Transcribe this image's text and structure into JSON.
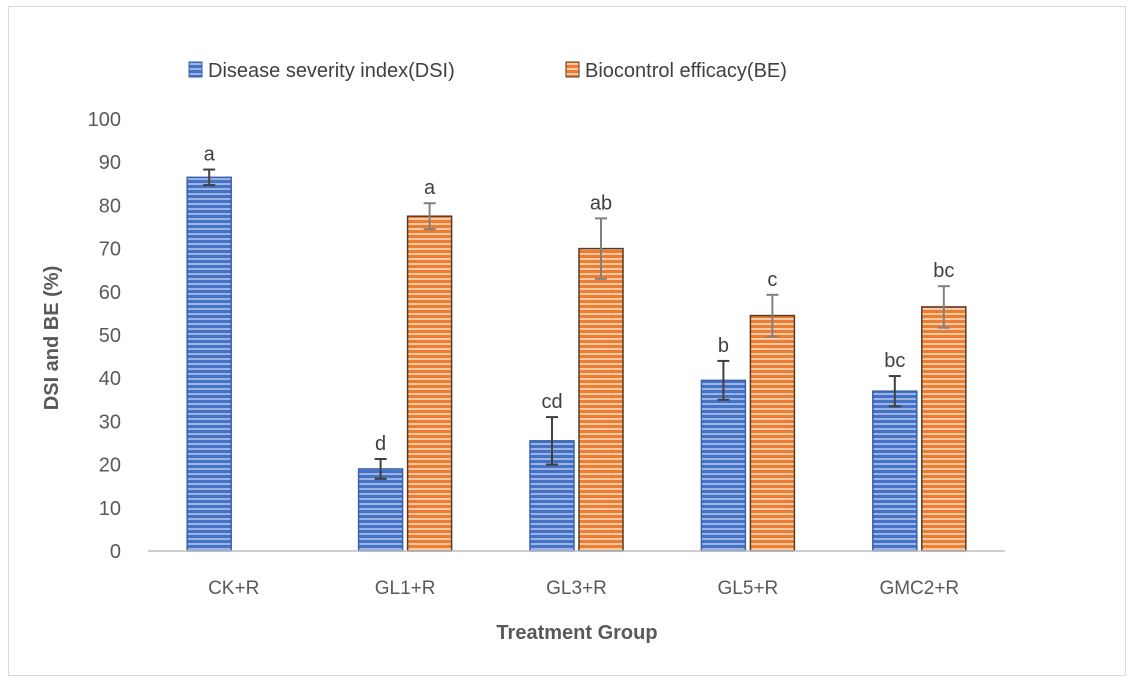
{
  "chart_data": {
    "type": "bar",
    "title": "",
    "xlabel": "Treatment Group",
    "ylabel": "DSI and BE (%)",
    "ylim": [
      0,
      100
    ],
    "yticks": [
      "0",
      "10",
      "20",
      "30",
      "40",
      "50",
      "60",
      "70",
      "80",
      "90",
      "100"
    ],
    "categories": [
      "CK+R",
      "GL1+R",
      "GL3+R",
      "GL5+R",
      "GMC2+R"
    ],
    "series": [
      {
        "name": "Disease severity index(DSI)",
        "color": "#4472c4",
        "values": [
          86.5,
          19,
          25.5,
          39.5,
          37
        ],
        "errors": [
          1.8,
          2.3,
          5.5,
          4.5,
          3.5
        ],
        "letters": [
          "a",
          "d",
          "cd",
          "b",
          "bc"
        ]
      },
      {
        "name": "Biocontrol efficacy(BE)",
        "color": "#ed7d31",
        "values": [
          null,
          77.5,
          70,
          54.5,
          56.5
        ],
        "errors": [
          null,
          3,
          7,
          4.8,
          4.8
        ],
        "letters": [
          "",
          "a",
          "ab",
          "c",
          "bc"
        ]
      }
    ],
    "legend_position": "top",
    "grid": false
  }
}
